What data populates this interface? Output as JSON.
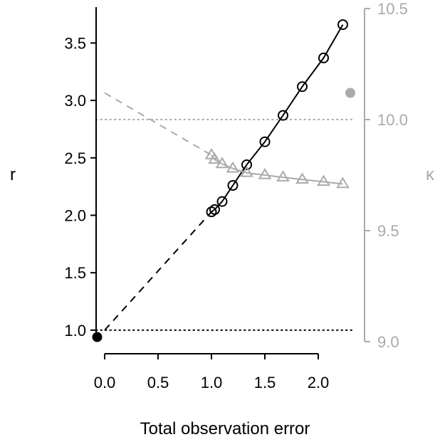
{
  "chart_data": {
    "type": "line",
    "title": "",
    "xlabel": "Total observation error",
    "ylabel_left": "r",
    "ylabel_right": "κ",
    "xlim": [
      -0.08,
      2.32
    ],
    "ylim_left": [
      0.9,
      3.8
    ],
    "ylim_right": [
      9.0,
      10.5
    ],
    "x_ticks": [
      "0.0",
      "0.5",
      "1.0",
      "1.5",
      "2.0"
    ],
    "y_left_ticks": [
      "1.0",
      "1.5",
      "2.0",
      "2.5",
      "3.0",
      "3.5"
    ],
    "y_right_ticks": [
      "9.0",
      "9.5",
      "10.0",
      "10.5"
    ],
    "colors": {
      "r": "#000000",
      "kappa": "#aaaaaa"
    },
    "series": [
      {
        "axis": "left",
        "marker": "circle",
        "color": "#000000",
        "x": [
          1.0,
          1.03,
          1.1,
          1.2,
          1.33,
          1.5,
          1.67,
          1.85,
          2.05,
          2.23
        ],
        "y": [
          2.03,
          2.05,
          2.12,
          2.26,
          2.44,
          2.64,
          2.87,
          3.12,
          3.37,
          3.66
        ],
        "extrapolation": {
          "x": [
            0.0,
            1.0
          ],
          "y": [
            1.0,
            2.03
          ]
        },
        "reference": {
          "x": -0.07,
          "y": 0.94
        },
        "hline": 1.0
      },
      {
        "axis": "right",
        "marker": "triangle",
        "color": "#aaaaaa",
        "x": [
          1.0,
          1.03,
          1.1,
          1.2,
          1.33,
          1.5,
          1.67,
          1.85,
          2.05,
          2.23
        ],
        "y": [
          9.84,
          9.82,
          9.8,
          9.78,
          9.76,
          9.75,
          9.74,
          9.73,
          9.72,
          9.71
        ],
        "extrapolation": {
          "x": [
            0.0,
            1.0
          ],
          "y": [
            10.12,
            9.84
          ]
        },
        "reference": {
          "x": 2.3,
          "y": 10.12
        },
        "hline": 10.0
      }
    ]
  }
}
